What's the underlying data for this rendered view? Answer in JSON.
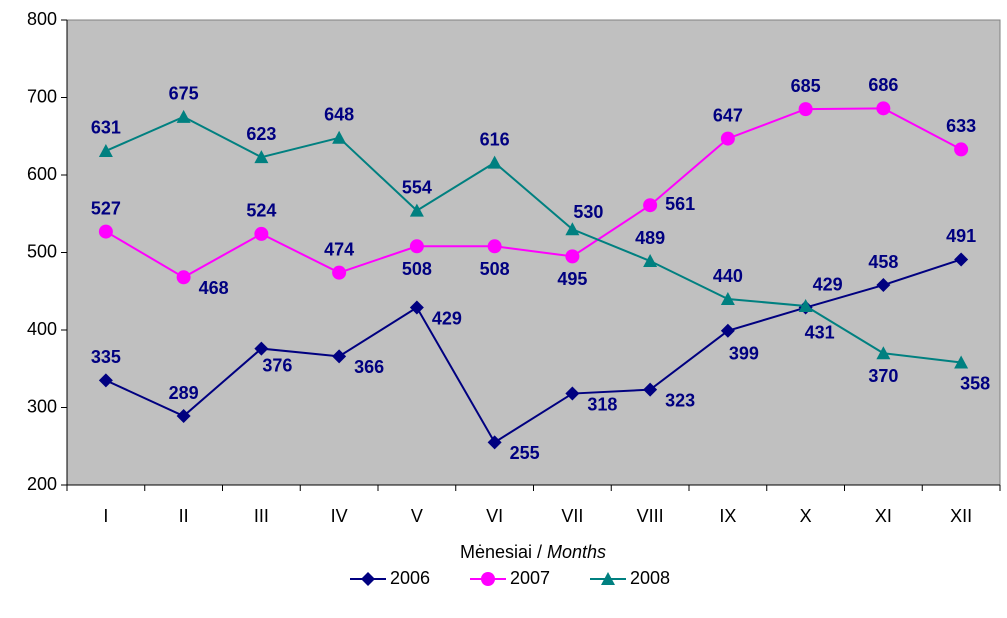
{
  "chart_data": {
    "type": "line",
    "categories": [
      "I",
      "II",
      "III",
      "IV",
      "V",
      "VI",
      "VII",
      "VIII",
      "IX",
      "X",
      "XI",
      "XII"
    ],
    "series": [
      {
        "name": "2006",
        "color": "#000080",
        "marker": "diamond",
        "values": [
          335,
          289,
          376,
          366,
          429,
          255,
          318,
          323,
          399,
          429,
          458,
          491
        ]
      },
      {
        "name": "2007",
        "color": "#ff00ff",
        "marker": "circle",
        "values": [
          527,
          468,
          524,
          474,
          508,
          508,
          495,
          561,
          647,
          685,
          686,
          633
        ]
      },
      {
        "name": "2008",
        "color": "#008080",
        "marker": "triangle",
        "values": [
          631,
          675,
          623,
          648,
          554,
          616,
          530,
          489,
          440,
          431,
          370,
          358
        ]
      }
    ],
    "ylim": [
      200,
      800
    ],
    "yticks": [
      200,
      300,
      400,
      500,
      600,
      700,
      800
    ],
    "x_label": "Mėnesiai /",
    "x_label_italic": "Months",
    "legend": "bottom"
  }
}
